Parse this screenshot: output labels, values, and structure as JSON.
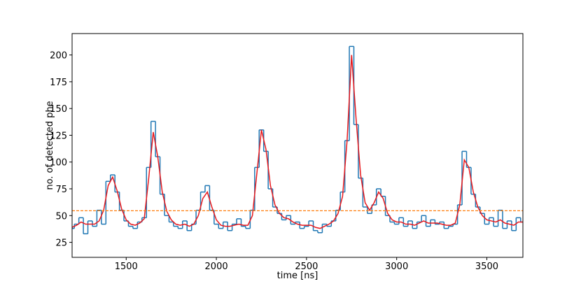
{
  "chart_data": {
    "type": "line",
    "xlabel": "time [ns]",
    "ylabel": "no. of detected phe",
    "xlim": [
      1200,
      3700
    ],
    "ylim": [
      11,
      220
    ],
    "xticks": [
      1500,
      2000,
      2500,
      3000,
      3500
    ],
    "yticks": [
      25,
      50,
      75,
      100,
      125,
      150,
      175,
      200
    ],
    "threshold": 54.5,
    "threshold_color": "#ff7f0e",
    "x": [
      1200,
      1225,
      1250,
      1275,
      1300,
      1325,
      1350,
      1375,
      1400,
      1425,
      1450,
      1475,
      1500,
      1525,
      1550,
      1575,
      1600,
      1625,
      1650,
      1675,
      1700,
      1725,
      1750,
      1775,
      1800,
      1825,
      1850,
      1875,
      1900,
      1925,
      1950,
      1975,
      2000,
      2025,
      2050,
      2075,
      2100,
      2125,
      2150,
      2175,
      2200,
      2225,
      2250,
      2275,
      2300,
      2325,
      2350,
      2375,
      2400,
      2425,
      2450,
      2475,
      2500,
      2525,
      2550,
      2575,
      2600,
      2625,
      2650,
      2675,
      2700,
      2725,
      2750,
      2775,
      2800,
      2825,
      2850,
      2875,
      2900,
      2925,
      2950,
      2975,
      3000,
      3025,
      3050,
      3075,
      3100,
      3125,
      3150,
      3175,
      3200,
      3225,
      3250,
      3275,
      3300,
      3325,
      3350,
      3375,
      3400,
      3425,
      3450,
      3475,
      3500,
      3525,
      3550,
      3575,
      3600,
      3625,
      3650,
      3675,
      3700
    ],
    "series": [
      {
        "style": "steps",
        "color": "#1f77b4",
        "values": [
          38,
          42,
          48,
          33,
          45,
          40,
          55,
          42,
          82,
          88,
          72,
          55,
          45,
          40,
          38,
          44,
          48,
          95,
          138,
          105,
          70,
          50,
          44,
          40,
          38,
          45,
          36,
          42,
          55,
          72,
          78,
          55,
          42,
          38,
          44,
          36,
          42,
          47,
          40,
          38,
          55,
          95,
          130,
          110,
          75,
          58,
          52,
          46,
          50,
          42,
          44,
          38,
          40,
          45,
          36,
          34,
          42,
          40,
          45,
          55,
          72,
          120,
          208,
          135,
          85,
          58,
          52,
          60,
          75,
          68,
          50,
          44,
          42,
          48,
          40,
          45,
          38,
          44,
          50,
          40,
          46,
          42,
          44,
          38,
          40,
          42,
          60,
          110,
          95,
          70,
          58,
          52,
          42,
          48,
          40,
          55,
          38,
          45,
          36,
          48,
          44
        ]
      },
      {
        "style": "line",
        "color": "#e8191d",
        "values": [
          39,
          41,
          44,
          42,
          42,
          42,
          45,
          55,
          78,
          86,
          73,
          56,
          46,
          42,
          41,
          43,
          47,
          85,
          128,
          105,
          72,
          54,
          46,
          42,
          41,
          42,
          40,
          42,
          50,
          66,
          72,
          58,
          46,
          41,
          40,
          40,
          41,
          42,
          41,
          41,
          50,
          90,
          130,
          112,
          78,
          60,
          52,
          48,
          47,
          44,
          42,
          41,
          41,
          41,
          39,
          38,
          40,
          42,
          45,
          52,
          68,
          120,
          200,
          140,
          88,
          62,
          55,
          62,
          72,
          66,
          52,
          46,
          44,
          44,
          42,
          42,
          41,
          43,
          45,
          43,
          43,
          43,
          42,
          41,
          41,
          43,
          60,
          102,
          95,
          72,
          58,
          50,
          46,
          45,
          44,
          46,
          43,
          42,
          41,
          44,
          44
        ]
      }
    ]
  }
}
